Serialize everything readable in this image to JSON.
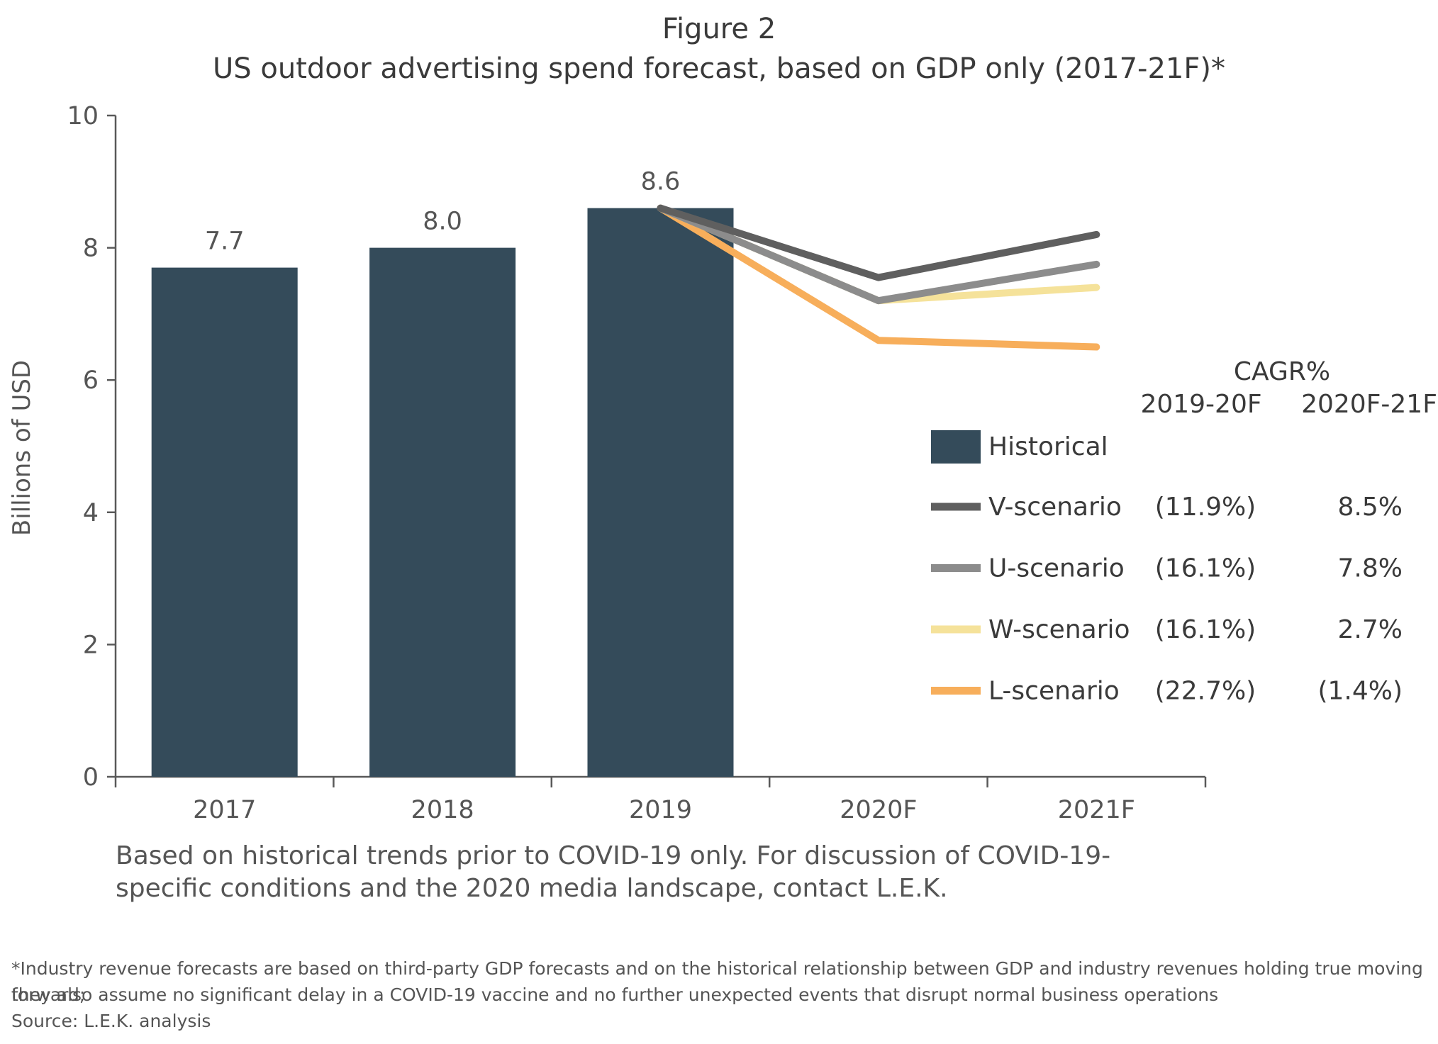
{
  "chart_data": {
    "type": "bar+line",
    "title": "Figure 2",
    "subtitle": "US outdoor advertising spend forecast, based on GDP only (2017-21F)*",
    "ylabel": "Billions of USD",
    "ylim": [
      0,
      10
    ],
    "yticks": [
      "0",
      "2",
      "4",
      "6",
      "8",
      "10"
    ],
    "categories": [
      "2017",
      "2018",
      "2019",
      "2020F",
      "2021F"
    ],
    "bars": {
      "name": "Historical",
      "color": "#344b5a",
      "values": [
        7.7,
        8.0,
        8.6
      ],
      "labels": [
        "7.7",
        "8.0",
        "8.6"
      ]
    },
    "series": [
      {
        "name": "V-scenario",
        "color": "#5f5f5f",
        "values": [
          null,
          null,
          8.6,
          7.55,
          8.2
        ],
        "cagr_2019_20F": "(11.9%)",
        "cagr_2020F_21F": "8.5%"
      },
      {
        "name": "U-scenario",
        "color": "#8c8c8c",
        "values": [
          null,
          null,
          8.6,
          7.2,
          7.75
        ],
        "cagr_2019_20F": "(16.1%)",
        "cagr_2020F_21F": "7.8%"
      },
      {
        "name": "W-scenario",
        "color": "#f5e29a",
        "values": [
          null,
          null,
          8.6,
          7.2,
          7.4
        ],
        "cagr_2019_20F": "(16.1%)",
        "cagr_2020F_21F": "2.7%"
      },
      {
        "name": "L-scenario",
        "color": "#f7ae5b",
        "values": [
          null,
          null,
          8.6,
          6.6,
          6.5
        ],
        "cagr_2019_20F": "(22.7%)",
        "cagr_2020F_21F": "(1.4%)"
      }
    ],
    "legend": {
      "placement": "right",
      "cagr_header": "CAGR%",
      "col1_header": "2019-20F",
      "col2_header": "2020F-21F"
    },
    "grid": false
  },
  "note": "Based on historical trends prior to COVID-19 only. For discussion of COVID-19-specific conditions and the 2020 media landscape, contact L.E.K.",
  "footnote_1": "*Industry revenue forecasts are based on third-party GDP forecasts and on the historical relationship between GDP and industry revenues holding true moving forward;",
  "footnote_2": "they also assume no significant delay in a COVID-19 vaccine and no further unexpected events that disrupt normal business operations",
  "source": "Source: L.E.K. analysis"
}
